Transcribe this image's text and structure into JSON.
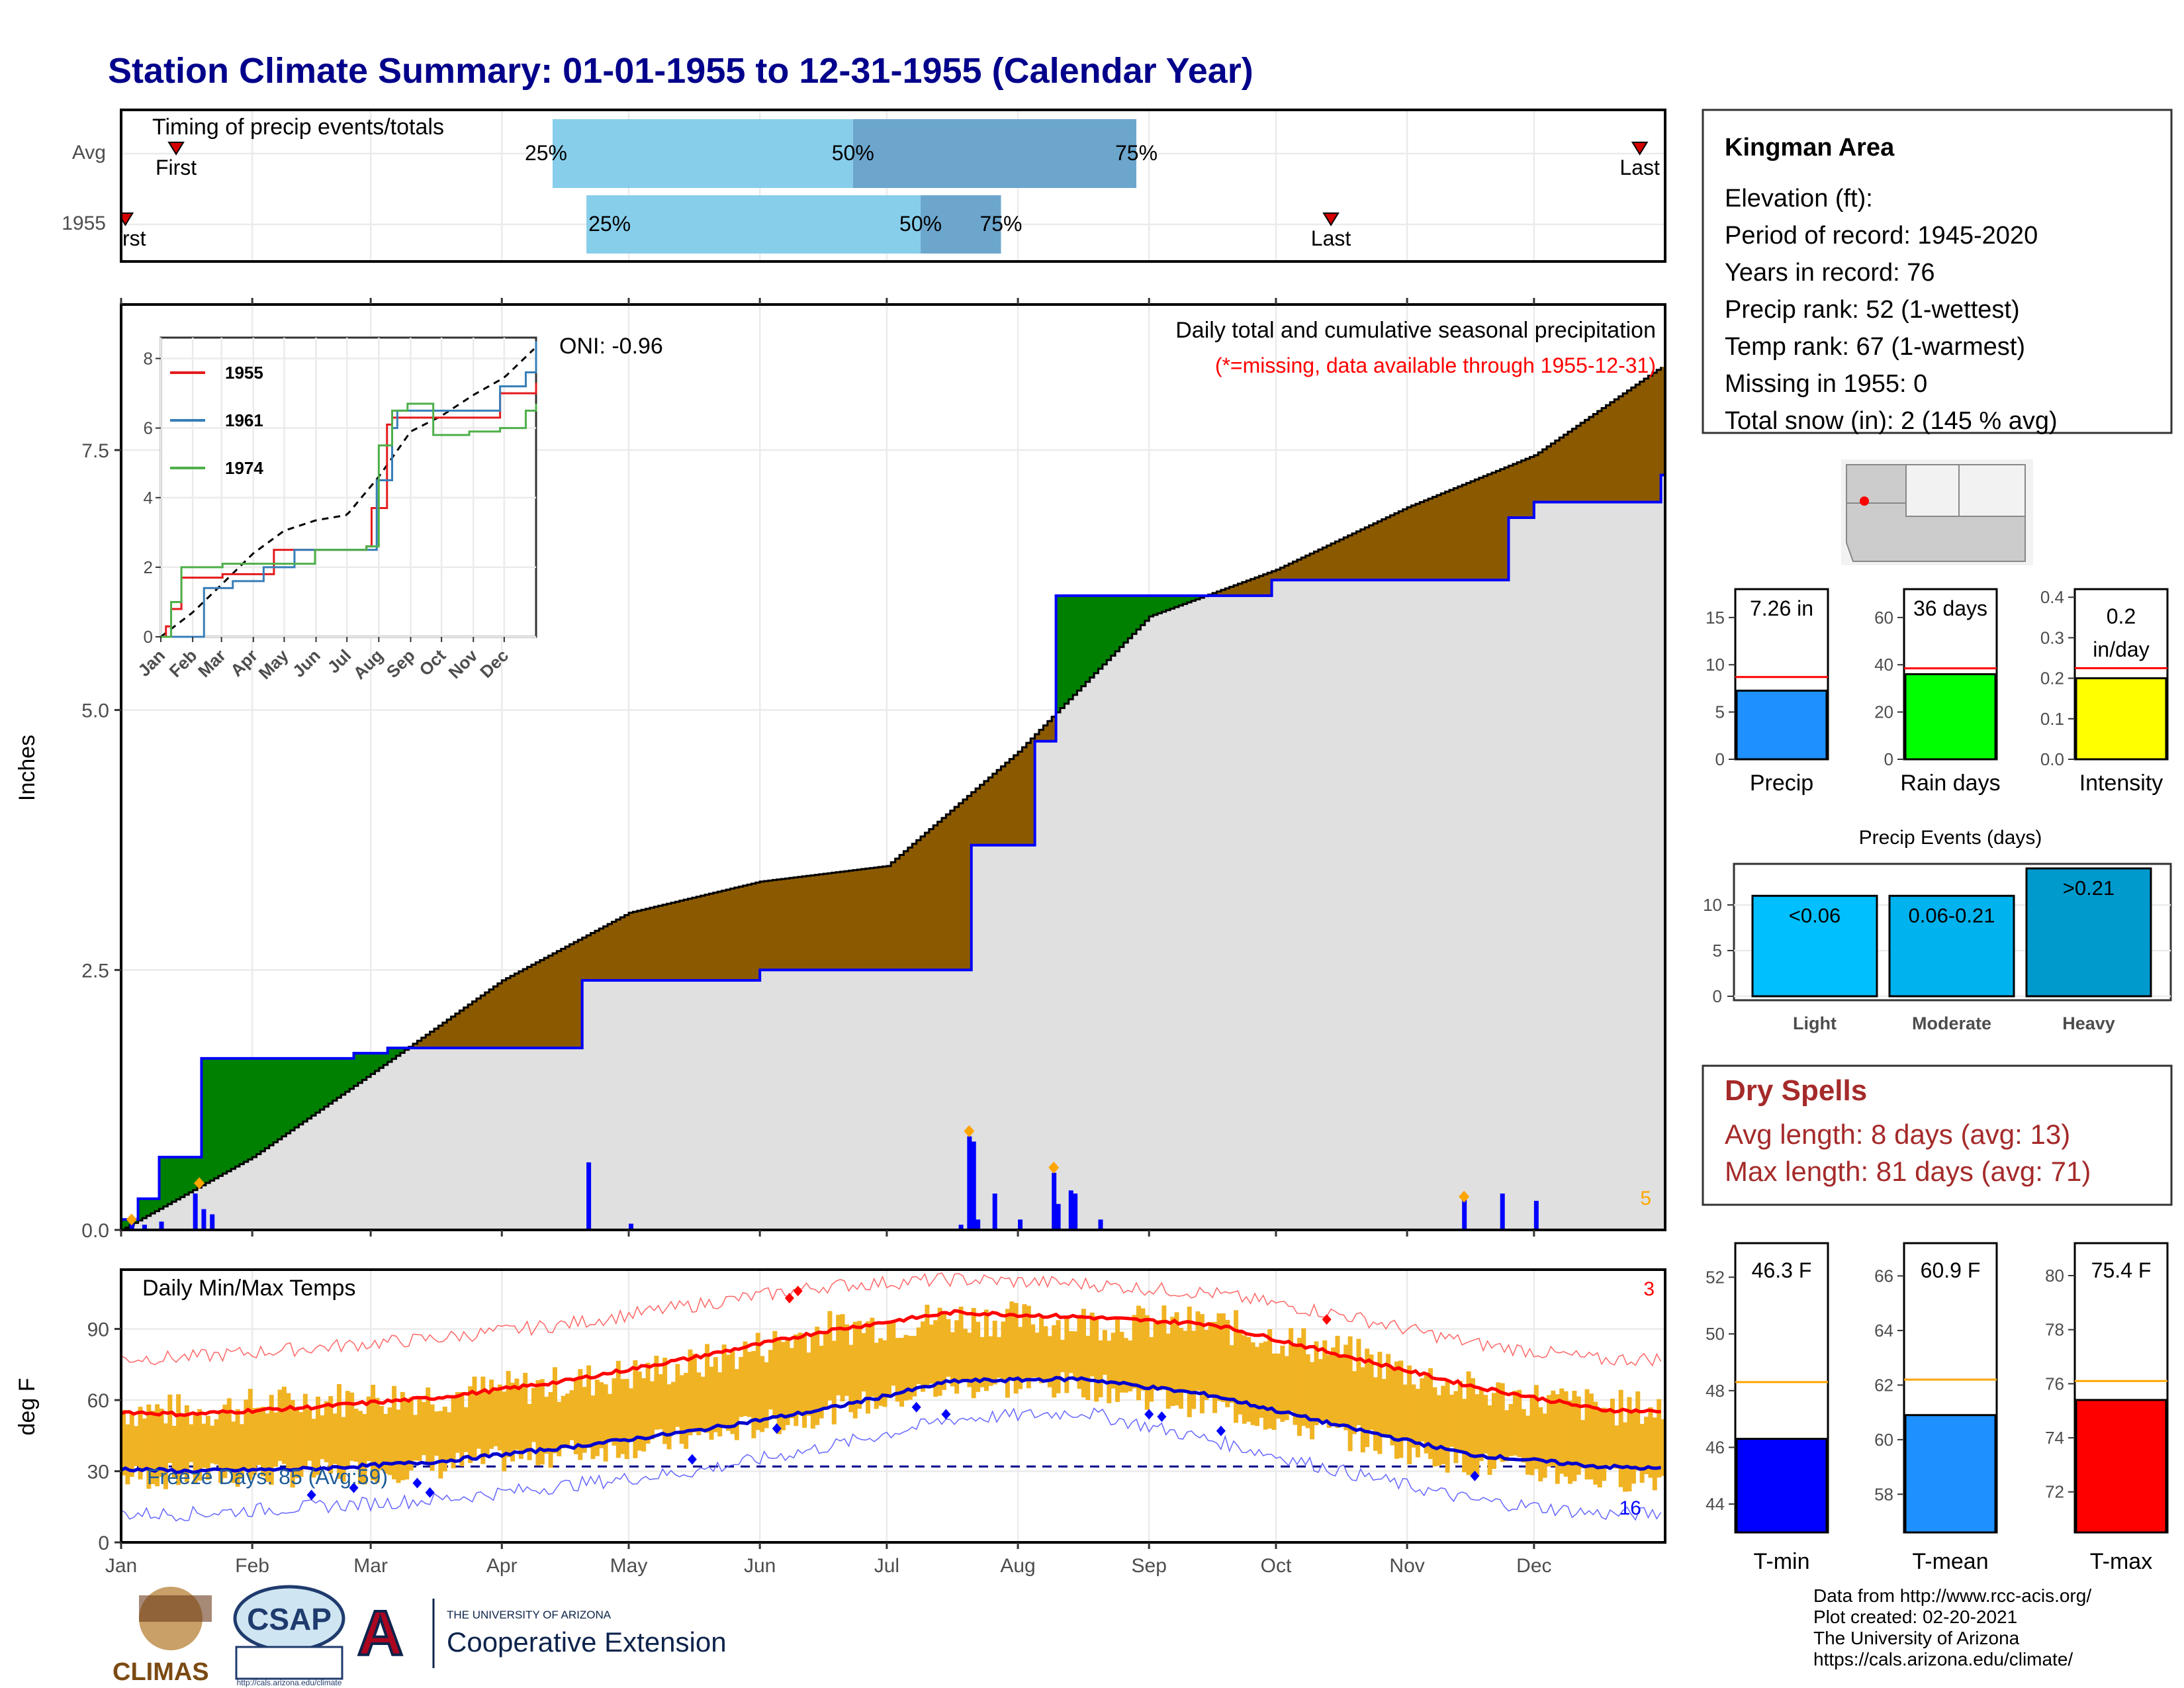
{
  "title": "Station Climate Summary: 01-01-1955 to 12-31-1955 (Calendar Year)",
  "timing": {
    "label": "Timing of precip events/totals",
    "rows": [
      {
        "name": "Avg",
        "first_doy": 13,
        "p25_doy": 102,
        "p50_doy": 173,
        "p75_doy": 240,
        "last_doy": 359
      },
      {
        "name": "1955",
        "first_doy": 1,
        "p25_doy": 110,
        "p50_doy": 189,
        "p75_doy": 208,
        "last_doy": 286
      }
    ],
    "first_label": "First",
    "last_label": "Last",
    "p25_label": "25%",
    "p50_label": "50%",
    "p75_label": "75%",
    "colors": {
      "light": "#87ceeb",
      "dark": "#6ca6cd",
      "marker": "#d40000"
    }
  },
  "months": [
    "Jan",
    "Feb",
    "Mar",
    "Apr",
    "May",
    "Jun",
    "Jul",
    "Aug",
    "Sep",
    "Oct",
    "Nov",
    "Dec"
  ],
  "precip": {
    "ylabel": "Inches",
    "yticks": [
      "0.0",
      "2.5",
      "5.0",
      "7.5"
    ],
    "ylim": [
      0,
      8.9
    ],
    "note1": "Daily total and cumulative seasonal precipitation",
    "note2": "(*=missing, data available through 1955-12-31)",
    "oni": "ONI: -0.96",
    "corner_count": "5",
    "colors": {
      "above": "#008000",
      "below": "#8b5a00",
      "fill": "#e0e0e0",
      "obs_line": "#0000ff",
      "daily_bar": "#0000ff",
      "extreme": "#ffa500"
    }
  },
  "inset": {
    "yticks": [
      "0",
      "2",
      "4",
      "6",
      "8"
    ],
    "xticks": [
      "Jan",
      "Feb",
      "Mar",
      "Apr",
      "May",
      "Jun",
      "Jul",
      "Aug",
      "Sep",
      "Oct",
      "Nov",
      "Dec"
    ],
    "legend": [
      {
        "name": "1955",
        "color": "#e41a1c"
      },
      {
        "name": "1961",
        "color": "#377eb8"
      },
      {
        "name": "1974",
        "color": "#4daf4a"
      }
    ]
  },
  "temps": {
    "ylabel": "deg F",
    "yticks": [
      "0",
      "30",
      "60",
      "90"
    ],
    "title": "Daily Min/Max Temps",
    "freeze_label": "Freeze Days: 85 (Avg:59)",
    "corner_hot": "3",
    "corner_cold": "16",
    "colors": {
      "bar": "#f0b323",
      "avg_max": "#ff0000",
      "avg_min": "#0000cd",
      "freeze": "#00008b"
    }
  },
  "station": {
    "name": "Kingman Area",
    "elevation": "Elevation (ft):",
    "period": "Period of record: 1945-2020",
    "years": "Years in record: 76",
    "precip_rank": "Precip rank: 52 (1-wettest)",
    "temp_rank": "Temp rank: 67 (1-warmest)",
    "missing": "Missing in 1955: 0",
    "snow": "Total snow (in): 2 (145 % avg)"
  },
  "summary_bars": [
    {
      "name": "Precip",
      "value_label": "7.26 in",
      "value": 7.26,
      "avg": 8.7,
      "ylim": [
        0,
        18
      ],
      "yticks": [
        "0",
        "5",
        "10",
        "15"
      ],
      "color": "#1e90ff"
    },
    {
      "name": "Rain days",
      "value_label": "36 days",
      "value": 36,
      "avg": 38.5,
      "ylim": [
        0,
        72
      ],
      "yticks": [
        "0",
        "20",
        "40",
        "60"
      ],
      "color": "#00ff00"
    },
    {
      "name": "Intensity",
      "value_label": "0.2 in/day",
      "value_line1": "0.2",
      "value_line2": "in/day",
      "value": 0.2,
      "avg": 0.225,
      "ylim": [
        0,
        0.42
      ],
      "yticks": [
        "0.0",
        "0.1",
        "0.2",
        "0.3",
        "0.4"
      ],
      "color": "#ffff00"
    }
  ],
  "events": {
    "title": "Precip Events (days)",
    "yticks": [
      "0",
      "5",
      "10"
    ],
    "ylim": [
      0,
      14.5
    ],
    "bars": [
      {
        "name": "Light",
        "label": "<0.06",
        "value": 11,
        "color": "#00bfff"
      },
      {
        "name": "Moderate",
        "label": "0.06-0.21",
        "value": 11,
        "color": "#00b2ee"
      },
      {
        "name": "Heavy",
        "label": ">0.21",
        "value": 14,
        "color": "#009acd"
      }
    ]
  },
  "dry_spells": {
    "title": "Dry Spells",
    "avg": "Avg length: 8 days (avg: 13)",
    "max": "Max length: 81 days (avg: 71)"
  },
  "temp_bars": [
    {
      "name": "T-min",
      "value_label": "46.3 F",
      "value": 46.3,
      "avg": 48.3,
      "ylim": [
        43,
        53.2
      ],
      "yticks": [
        "44",
        "46",
        "48",
        "50",
        "52"
      ],
      "color": "#0000ff"
    },
    {
      "name": "T-mean",
      "value_label": "60.9 F",
      "value": 60.9,
      "avg": 62.2,
      "ylim": [
        56.6,
        67.2
      ],
      "yticks": [
        "58",
        "60",
        "62",
        "64",
        "66"
      ],
      "color": "#1e90ff"
    },
    {
      "name": "T-max",
      "value_label": "75.4 F",
      "value": 75.4,
      "avg": 76.1,
      "ylim": [
        70.5,
        81.2
      ],
      "yticks": [
        "72",
        "74",
        "76",
        "78",
        "80"
      ],
      "color": "#ff0000"
    }
  ],
  "footer": {
    "source": "Data from http://www.rcc-acis.org/",
    "created": "Plot created: 02-20-2021",
    "org": "The University of Arizona",
    "url": "https://cals.arizona.edu/climate/"
  },
  "logos": {
    "climas": "CLIMAS",
    "csap": "CSAP",
    "csap_url": "http://cals.arizona.edu/climate",
    "ua_small": "THE UNIVERSITY OF ARIZONA",
    "ua_big": "Cooperative Extension"
  },
  "chart_data": [
    {
      "type": "area",
      "title": "Daily total and cumulative seasonal precipitation",
      "ylabel": "Inches",
      "x_unit": "month",
      "ylim": [
        0,
        8.9
      ],
      "series": [
        {
          "name": "cumulative_observed",
          "x": [
            "Jan 1",
            "Jan 5",
            "Jan 10",
            "Jan 20",
            "Feb 1",
            "Feb 25",
            "Mar 5",
            "Apr 20",
            "Jun 1",
            "Jun 30",
            "Jul 19",
            "Jul 21",
            "Aug 1",
            "Aug 5",
            "Aug 10",
            "Sep 30",
            "Nov 15",
            "Nov 25",
            "Dec 1",
            "Dec 31"
          ],
          "values": [
            0.1,
            0.3,
            0.7,
            1.65,
            1.65,
            1.7,
            1.75,
            2.4,
            2.5,
            2.5,
            2.5,
            3.7,
            3.7,
            4.7,
            6.1,
            6.25,
            6.25,
            6.85,
            7.0,
            7.26
          ]
        },
        {
          "name": "cumulative_average",
          "x": [
            "Jan 1",
            "Feb 1",
            "Mar 1",
            "Apr 1",
            "May 1",
            "Jun 1",
            "Jul 1",
            "Aug 1",
            "Sep 1",
            "Oct 1",
            "Nov 1",
            "Dec 1",
            "Dec 31"
          ],
          "values": [
            0.0,
            0.7,
            1.5,
            2.4,
            3.05,
            3.35,
            3.5,
            4.6,
            5.9,
            6.35,
            6.95,
            7.45,
            8.3
          ]
        },
        {
          "name": "daily_precip",
          "x": [
            "Jan 3",
            "Jan 6",
            "Jan 10",
            "Jan 18",
            "Jan 20",
            "Jan 22",
            "Apr 21",
            "May 1",
            "Jul 18",
            "Jul 20",
            "Jul 21",
            "Jul 22",
            "Jul 26",
            "Aug 1",
            "Aug 9",
            "Aug 10",
            "Aug 13",
            "Aug 14",
            "Aug 20",
            "Nov 14",
            "Nov 23",
            "Dec 1"
          ],
          "values": [
            0.1,
            0.05,
            0.08,
            0.35,
            0.2,
            0.15,
            0.65,
            0.06,
            0.05,
            0.9,
            0.85,
            0.1,
            0.35,
            0.1,
            0.55,
            0.25,
            0.38,
            0.35,
            0.1,
            0.3,
            0.35,
            0.28
          ]
        }
      ]
    },
    {
      "type": "line",
      "title": "Daily Min/Max Temps",
      "ylabel": "deg F",
      "ylim": [
        0,
        115
      ],
      "x": [
        "Jan",
        "Feb",
        "Mar",
        "Apr",
        "May",
        "Jun",
        "Jul",
        "Aug",
        "Sep",
        "Oct",
        "Nov",
        "Dec"
      ],
      "series": [
        {
          "name": "avg_max",
          "values": [
            54,
            57,
            61,
            68,
            78,
            89,
            97,
            95,
            92,
            79,
            66,
            56
          ]
        },
        {
          "name": "avg_min",
          "values": [
            30,
            31,
            34,
            40,
            47,
            56,
            68,
            69,
            62,
            49,
            37,
            32
          ]
        },
        {
          "name": "record_max",
          "values": [
            78,
            82,
            86,
            92,
            100,
            108,
            111,
            109,
            105,
            96,
            84,
            77
          ]
        },
        {
          "name": "record_min",
          "values": [
            12,
            15,
            18,
            24,
            30,
            40,
            52,
            55,
            43,
            30,
            18,
            12
          ]
        },
        {
          "name": "obs_max_1955",
          "values": [
            55,
            60,
            62,
            67,
            75,
            90,
            95,
            93,
            92,
            80,
            64,
            57
          ]
        },
        {
          "name": "obs_min_1955",
          "values": [
            28,
            29,
            32,
            38,
            44,
            55,
            66,
            66,
            57,
            45,
            33,
            27
          ]
        }
      ]
    },
    {
      "type": "bar",
      "title": "Precip Events (days)",
      "categories": [
        "Light",
        "Moderate",
        "Heavy"
      ],
      "values": [
        11,
        11,
        14
      ]
    },
    {
      "type": "bar",
      "categories": [
        "Precip",
        "Rain days",
        "Intensity",
        "T-min",
        "T-mean",
        "T-max"
      ],
      "values": [
        7.26,
        36,
        0.2,
        46.3,
        60.9,
        75.4
      ]
    }
  ]
}
